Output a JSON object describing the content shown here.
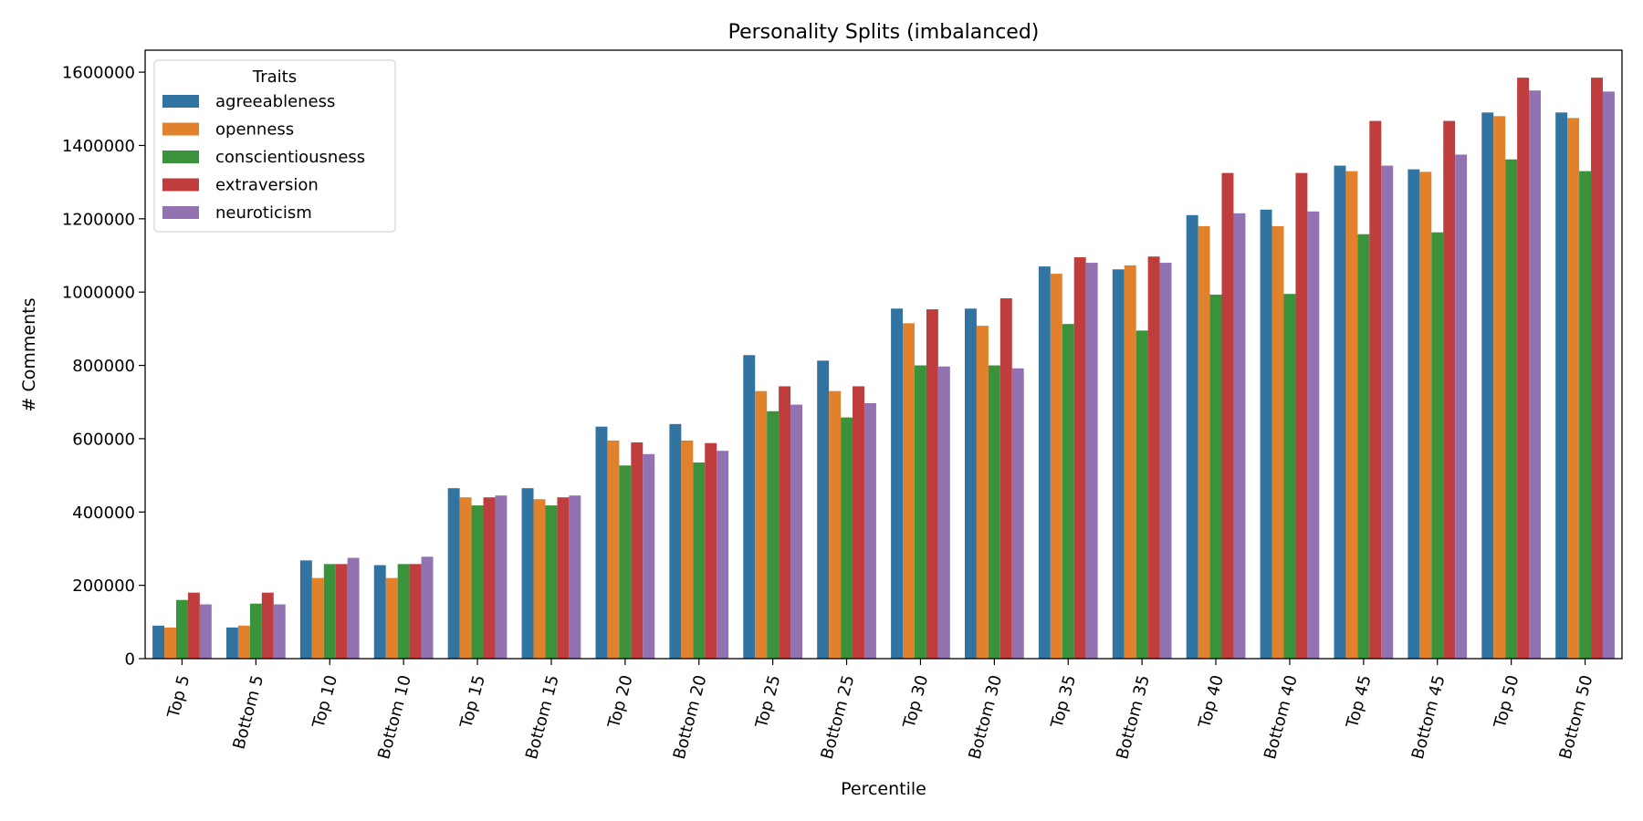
{
  "chart_data": {
    "type": "bar",
    "title": "Personality Splits (imbalanced)",
    "xlabel": "Percentile",
    "ylabel": "# Comments",
    "ylim": [
      0,
      1660000
    ],
    "yticks": [
      0,
      200000,
      400000,
      600000,
      800000,
      1000000,
      1200000,
      1400000,
      1600000
    ],
    "legend_title": "Traits",
    "legend_position": "top-left",
    "grid": false,
    "categories": [
      "Top 5",
      "Bottom 5",
      "Top 10",
      "Bottom 10",
      "Top 15",
      "Bottom 15",
      "Top 20",
      "Bottom 20",
      "Top 25",
      "Bottom 25",
      "Top 30",
      "Bottom 30",
      "Top 35",
      "Bottom 35",
      "Top 40",
      "Bottom 40",
      "Top 45",
      "Bottom 45",
      "Top 50",
      "Bottom 50"
    ],
    "series": [
      {
        "name": "agreeableness",
        "color": "#3274a1",
        "values": [
          90000,
          85000,
          268000,
          255000,
          465000,
          465000,
          633000,
          640000,
          828000,
          813000,
          955000,
          955000,
          1070000,
          1062000,
          1210000,
          1225000,
          1345000,
          1335000,
          1490000,
          1490000
        ]
      },
      {
        "name": "openness",
        "color": "#e1812c",
        "values": [
          85000,
          90000,
          220000,
          220000,
          440000,
          435000,
          595000,
          595000,
          730000,
          730000,
          915000,
          908000,
          1050000,
          1073000,
          1180000,
          1180000,
          1330000,
          1328000,
          1480000,
          1475000
        ]
      },
      {
        "name": "conscientiousness",
        "color": "#3a923a",
        "values": [
          160000,
          150000,
          258000,
          258000,
          418000,
          418000,
          527000,
          535000,
          675000,
          658000,
          800000,
          800000,
          913000,
          895000,
          993000,
          995000,
          1158000,
          1163000,
          1362000,
          1330000
        ]
      },
      {
        "name": "extraversion",
        "color": "#c03d3e",
        "values": [
          180000,
          180000,
          258000,
          258000,
          440000,
          440000,
          590000,
          588000,
          743000,
          743000,
          953000,
          983000,
          1095000,
          1097000,
          1325000,
          1325000,
          1467000,
          1467000,
          1585000,
          1585000
        ]
      },
      {
        "name": "neuroticism",
        "color": "#9372b2",
        "values": [
          148000,
          148000,
          275000,
          278000,
          445000,
          445000,
          558000,
          567000,
          693000,
          697000,
          797000,
          792000,
          1080000,
          1080000,
          1215000,
          1220000,
          1345000,
          1375000,
          1550000,
          1547000
        ]
      }
    ]
  }
}
